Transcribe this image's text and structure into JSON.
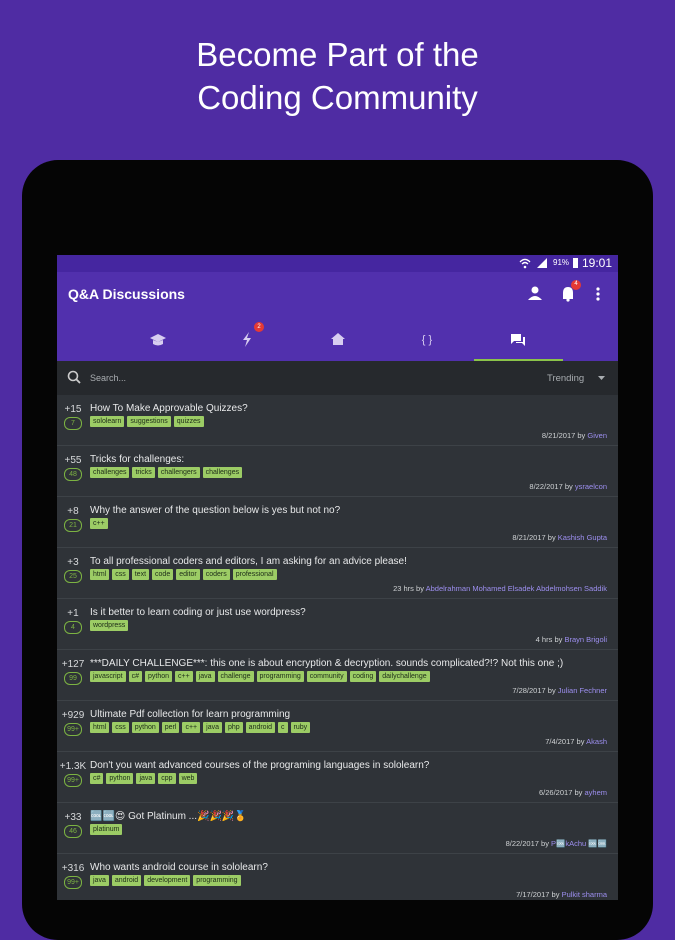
{
  "header": {
    "title_lines": [
      "Become Part of the",
      "Coding Community"
    ]
  },
  "status_bar": {
    "battery": "91%",
    "time": "19:01"
  },
  "app_bar": {
    "title": "Q&A Discussions",
    "notification_badge": "4",
    "tab_badge": "2"
  },
  "search": {
    "placeholder": "Search...",
    "sort": "Trending"
  },
  "by": "by",
  "posts": [
    {
      "votes": "+15",
      "answers": "7",
      "title": "How To Make Approvable Quizzes?",
      "tags": [
        "sololearn",
        "suggestions",
        "quizzes"
      ],
      "date": "8/21/2017",
      "author": "Given"
    },
    {
      "votes": "+55",
      "answers": "48",
      "title": "Tricks for challenges:",
      "tags": [
        "challenges",
        "tricks",
        "challengers",
        "challenges"
      ],
      "date": "8/22/2017",
      "author": "ysraelcon"
    },
    {
      "votes": "+8",
      "answers": "21",
      "title": "Why the answer of the question below is yes but not no?",
      "tags": [
        "c++"
      ],
      "date": "8/21/2017",
      "author": "Kashish Gupta"
    },
    {
      "votes": "+3",
      "answers": "25",
      "title": "To all professional coders and editors, I am asking for an advice please!",
      "tags": [
        "html",
        "css",
        "text",
        "code",
        "editor",
        "coders",
        "professional"
      ],
      "date": "23 hrs",
      "author": "Abdelrahman Mohamed Elsadek Abdelmohsen Saddik"
    },
    {
      "votes": "+1",
      "answers": "4",
      "title": "Is it better to learn coding or just use wordpress?",
      "tags": [
        "wordpress"
      ],
      "date": "4 hrs",
      "author": "Brayn Brigoli"
    },
    {
      "votes": "+127",
      "answers": "99",
      "title": "***DAILY CHALLENGE***: this one is about encryption & decryption. sounds complicated?!? Not this one ;)",
      "tags": [
        "javascript",
        "c#",
        "python",
        "c++",
        "java",
        "challenge",
        "programming",
        "community",
        "coding",
        "dailychallenge"
      ],
      "date": "7/28/2017",
      "author": "Julian Fechner"
    },
    {
      "votes": "+929",
      "answers": "99+",
      "title": "Ultimate Pdf collection for learn programming",
      "tags": [
        "html",
        "css",
        "python",
        "perl",
        "c++",
        "java",
        "php",
        "android",
        "c",
        "ruby"
      ],
      "date": "7/4/2017",
      "author": "Akash"
    },
    {
      "votes": "+1.3K",
      "answers": "99+",
      "title": "Don't you want advanced courses of the programing languages in sololearn?",
      "tags": [
        "c#",
        "python",
        "java",
        "cpp",
        "web"
      ],
      "date": "6/26/2017",
      "author": "ayhem"
    },
    {
      "votes": "+33",
      "answers": "46",
      "title": "🆒🆒😍 Got Platinum ...🎉🎉🎉🏅",
      "tags": [
        "platinum"
      ],
      "date": "8/22/2017",
      "author": "P🆒kAchu 🆒🆒"
    },
    {
      "votes": "+316",
      "answers": "99+",
      "title": "Who wants android course in sololearn?",
      "tags": [
        "java",
        "android",
        "development",
        "programming"
      ],
      "date": "7/17/2017",
      "author": "Pulkit sharma"
    }
  ]
}
